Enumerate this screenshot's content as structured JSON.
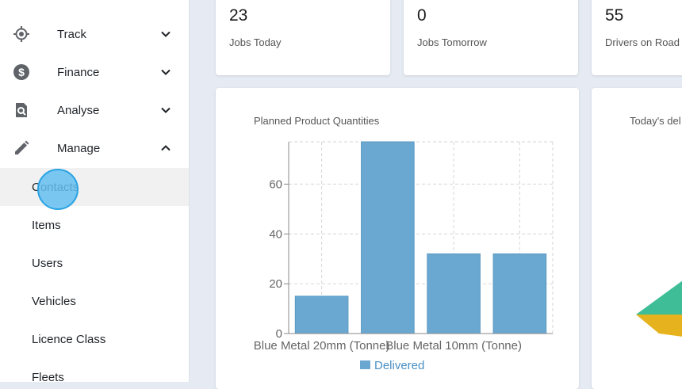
{
  "sidebar": {
    "items": [
      {
        "label": "Track",
        "icon": "crosshair-icon",
        "expanded": false
      },
      {
        "label": "Finance",
        "icon": "dollar-icon",
        "expanded": false
      },
      {
        "label": "Analyse",
        "icon": "search-doc-icon",
        "expanded": false
      },
      {
        "label": "Manage",
        "icon": "pencil-icon",
        "expanded": true
      }
    ],
    "manage_subitems": [
      {
        "label": "Contacts",
        "active": true
      },
      {
        "label": "Items",
        "active": false
      },
      {
        "label": "Users",
        "active": false
      },
      {
        "label": "Vehicles",
        "active": false
      },
      {
        "label": "Licence Class",
        "active": false
      },
      {
        "label": "Fleets",
        "active": false
      }
    ]
  },
  "stats": [
    {
      "value": "23",
      "label": "Jobs Today"
    },
    {
      "value": "0",
      "label": "Jobs Tomorrow"
    },
    {
      "value": "55",
      "label": "Drivers on Road"
    }
  ],
  "second_chart": {
    "title": "Today's del"
  },
  "chart_data": {
    "type": "bar",
    "title": "Planned Product Quantities",
    "categories": [
      "Blue Metal 20mm (Tonne)",
      "",
      "Blue Metal 10mm (Tonne)",
      ""
    ],
    "x_tick_labels": [
      "Blue Metal 20mm (Tonne)",
      "Blue Metal 10mm (Tonne)"
    ],
    "series": [
      {
        "name": "Delivered",
        "values": [
          15,
          77,
          32,
          32
        ]
      }
    ],
    "ylim": [
      0,
      77
    ],
    "yticks": [
      0,
      20,
      40,
      60
    ],
    "grid": true,
    "legend": "bottom",
    "color": "#6aa8d2"
  },
  "colors": {
    "accent": "#2aa3e3",
    "bar": "#6aa8d2",
    "background": "#e6ebf3"
  }
}
